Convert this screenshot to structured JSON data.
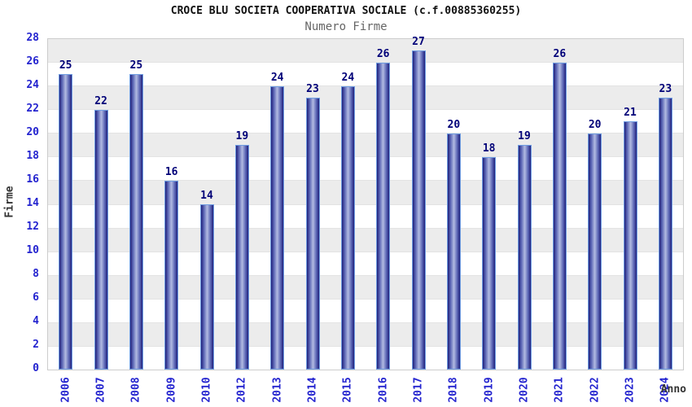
{
  "header": {
    "title": "CROCE BLU SOCIETA COOPERATIVA SOCIALE (c.f.00885360255)",
    "subtitle": "Numero Firme"
  },
  "chart_data": {
    "type": "bar",
    "title": "CROCE BLU SOCIETA COOPERATIVA SOCIALE (c.f.00885360255)",
    "subtitle": "Numero Firme",
    "categories": [
      "2006",
      "2007",
      "2008",
      "2009",
      "2010",
      "2012",
      "2013",
      "2014",
      "2015",
      "2016",
      "2017",
      "2018",
      "2019",
      "2020",
      "2021",
      "2022",
      "2023",
      "2024"
    ],
    "values": [
      25,
      22,
      25,
      16,
      14,
      19,
      24,
      23,
      24,
      26,
      27,
      20,
      18,
      19,
      26,
      20,
      21,
      23
    ],
    "xlabel": "Anno",
    "ylabel": "Firme",
    "ylim": [
      0,
      28
    ],
    "ytick_step": 2,
    "grid": "horizontal-bands",
    "legend": "none",
    "bar_labels_shown": true
  },
  "colors": {
    "title_text": "#111111",
    "subtitle_text": "#666666",
    "axis_tick_text": "#2424cf",
    "bar_value_text": "#000078",
    "axis_title_text": "#333333",
    "bar_edge": "#20207a",
    "bar_mid": "#5a64b4",
    "bar_center": "#b2bbe2",
    "bar_border": "#6f9de2",
    "band_gray": "#ececec",
    "band_white": "#ffffff",
    "plot_border": "#cccccc"
  }
}
